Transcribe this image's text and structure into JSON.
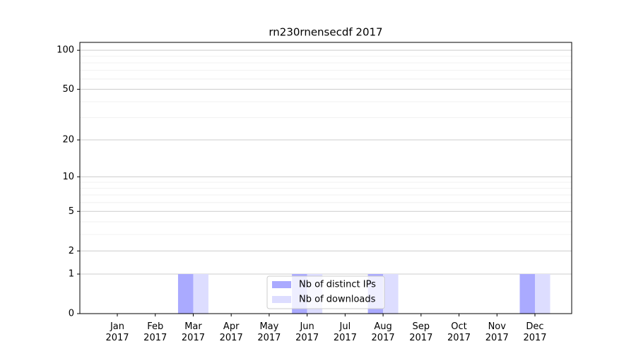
{
  "chart_data": {
    "type": "bar",
    "title": "rn230rnensecdf 2017",
    "categories": [
      "Jan\n2017",
      "Feb\n2017",
      "Mar\n2017",
      "Apr\n2017",
      "May\n2017",
      "Jun\n2017",
      "Jul\n2017",
      "Aug\n2017",
      "Sep\n2017",
      "Oct\n2017",
      "Nov\n2017",
      "Dec\n2017"
    ],
    "series": [
      {
        "name": "Nb of distinct IPs",
        "color": "#aaaaff",
        "values": [
          0,
          0,
          1,
          0,
          0,
          1,
          0,
          1,
          0,
          0,
          0,
          1
        ]
      },
      {
        "name": "Nb of downloads",
        "color": "#ddddff",
        "values": [
          0,
          0,
          1,
          0,
          0,
          1,
          0,
          1,
          0,
          0,
          0,
          1
        ]
      }
    ],
    "yscale": "log1p",
    "ylim": [
      0,
      115
    ],
    "yticks": [
      0,
      1,
      2,
      5,
      10,
      20,
      50,
      100
    ],
    "yticks_minor": [
      3,
      4,
      6,
      7,
      8,
      9,
      30,
      40,
      60,
      70,
      80,
      90
    ],
    "grid": true,
    "legend": "lower center"
  }
}
